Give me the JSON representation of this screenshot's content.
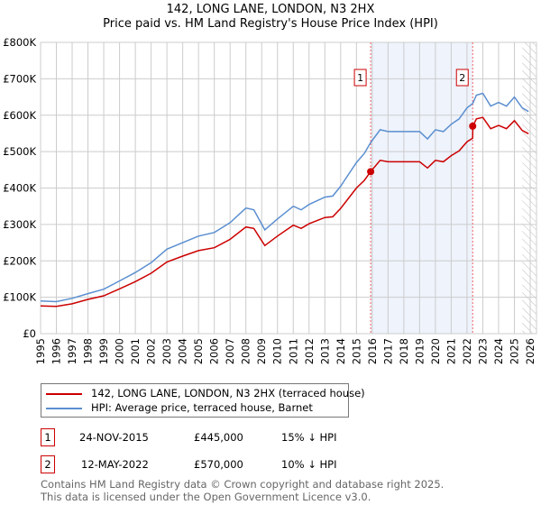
{
  "title": "142, LONG LANE, LONDON, N3 2HX",
  "subtitle": "Price paid vs. HM Land Registry's House Price Index (HPI)",
  "chart_data": {
    "type": "line",
    "title": "142, LONG LANE, LONDON, N3 2HX",
    "subtitle": "Price paid vs. HM Land Registry's House Price Index (HPI)",
    "xlim": [
      1995,
      2026
    ],
    "ylim": [
      0,
      800000
    ],
    "x_ticks": [
      "1995",
      "1996",
      "1997",
      "1998",
      "1999",
      "2000",
      "2001",
      "2002",
      "2003",
      "2004",
      "2005",
      "2006",
      "2007",
      "2008",
      "2009",
      "2010",
      "2011",
      "2012",
      "2013",
      "2014",
      "2015",
      "2016",
      "2017",
      "2018",
      "2019",
      "2020",
      "2021",
      "2022",
      "2023",
      "2024",
      "2025",
      "2026"
    ],
    "y_ticks": [
      {
        "v": 0,
        "l": "£0"
      },
      {
        "v": 100000,
        "l": "£100K"
      },
      {
        "v": 200000,
        "l": "£200K"
      },
      {
        "v": 300000,
        "l": "£300K"
      },
      {
        "v": 400000,
        "l": "£400K"
      },
      {
        "v": 500000,
        "l": "£500K"
      },
      {
        "v": 600000,
        "l": "£600K"
      },
      {
        "v": 700000,
        "l": "£700K"
      },
      {
        "v": 800000,
        "l": "£800K"
      }
    ],
    "grid": true,
    "x": [
      1995,
      1996,
      1997,
      1998,
      1999,
      2000,
      2001,
      2002,
      2003,
      2004,
      2005,
      2006,
      2007,
      2008,
      2008.5,
      2009.2,
      2010,
      2011,
      2011.5,
      2012,
      2013,
      2013.5,
      2014,
      2015,
      2015.5,
      2015.9,
      2016.5,
      2017,
      2018,
      2019,
      2019.5,
      2020,
      2020.5,
      2021,
      2021.5,
      2022,
      2022.36,
      2022.37,
      2022.6,
      2023,
      2023.5,
      2024,
      2024.5,
      2025,
      2025.5,
      2025.9
    ],
    "series": [
      {
        "name": "142, LONG LANE, LONDON, N3 2HX (terraced house)",
        "color": "#cc0000",
        "values": [
          76000,
          75000,
          82000,
          94000,
          104000,
          123000,
          143000,
          166000,
          197000,
          213000,
          228000,
          236000,
          259000,
          293000,
          289000,
          242000,
          268000,
          298000,
          289000,
          302000,
          319000,
          321000,
          344000,
          400000,
          421000,
          445000,
          476000,
          472000,
          472000,
          472000,
          455000,
          476000,
          472000,
          489000,
          502000,
          527000,
          537000,
          570000,
          590000,
          594000,
          563000,
          572000,
          563000,
          585000,
          558000,
          549000
        ]
      },
      {
        "name": "HPI: Average price, terraced house, Barnet",
        "color": "#5b8fd0",
        "values": [
          90000,
          88000,
          97000,
          110000,
          122000,
          145000,
          168000,
          195000,
          232000,
          250000,
          268000,
          278000,
          305000,
          345000,
          340000,
          285000,
          315000,
          350000,
          340000,
          355000,
          375000,
          378000,
          405000,
          470000,
          495000,
          525000,
          560000,
          555000,
          555000,
          555000,
          535000,
          560000,
          555000,
          575000,
          590000,
          620000,
          632000,
          633000,
          655000,
          660000,
          625000,
          635000,
          625000,
          650000,
          620000,
          610000
        ]
      }
    ],
    "sales": [
      {
        "id": "1",
        "x": 2015.9,
        "y": 445000
      },
      {
        "id": "2",
        "x": 2022.36,
        "y": 570000
      }
    ],
    "shaded_range": [
      2015.9,
      2022.36
    ],
    "hatched_from": 2025.5
  },
  "legend": {
    "items": [
      {
        "label": "142, LONG LANE, LONDON, N3 2HX (terraced house)",
        "color": "#cc0000"
      },
      {
        "label": "HPI: Average price, terraced house, Barnet",
        "color": "#5b8fd0"
      }
    ]
  },
  "transactions": [
    {
      "id": "1",
      "date": "24-NOV-2015",
      "price": "£445,000",
      "hpi": "15% ↓ HPI"
    },
    {
      "id": "2",
      "date": "12-MAY-2022",
      "price": "£570,000",
      "hpi": "10% ↓ HPI"
    }
  ],
  "footer": [
    "Contains HM Land Registry data © Crown copyright and database right 2025.",
    "This data is licensed under the Open Government Licence v3.0."
  ]
}
